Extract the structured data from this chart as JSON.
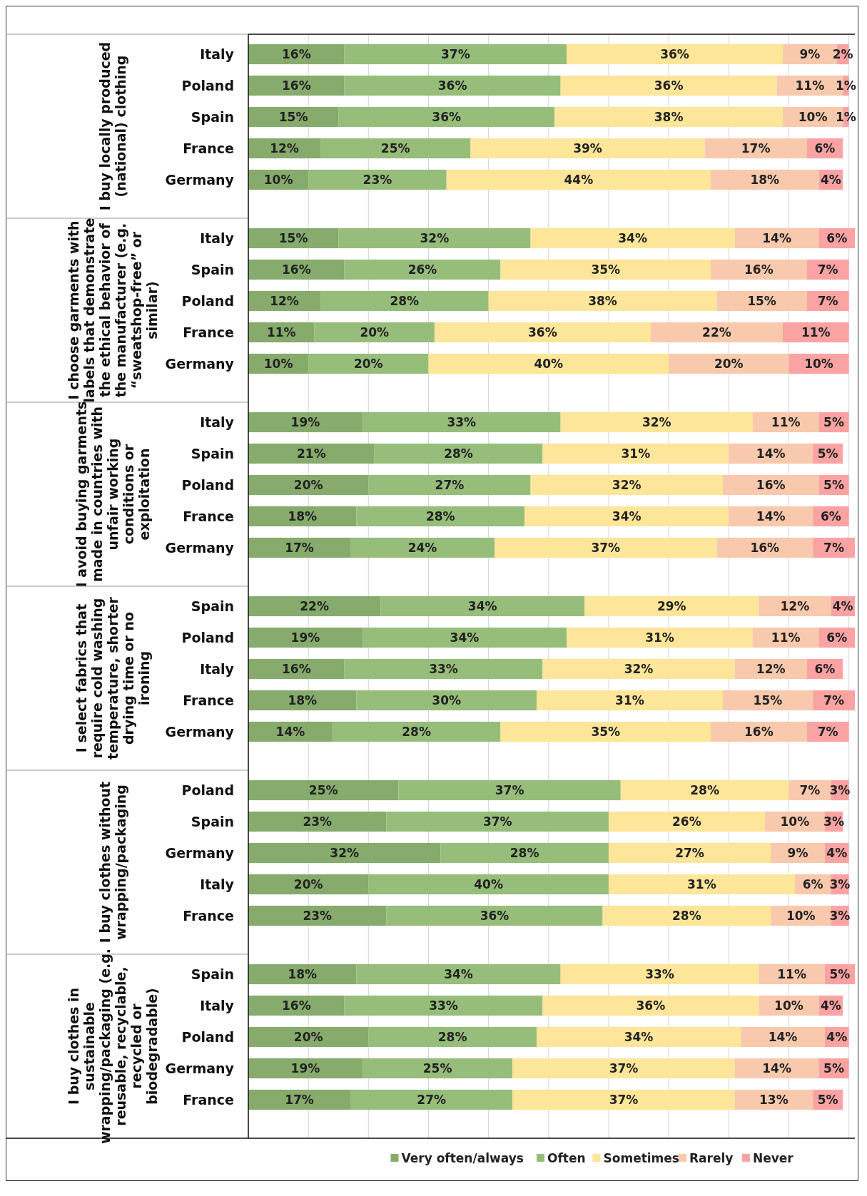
{
  "chart_data": [
    {
      "type": "bar",
      "orientation": "horizontal",
      "stacked": true,
      "title": "I buy locally produced (national) clothing",
      "categories": [
        "Italy",
        "Poland",
        "Spain",
        "France",
        "Germany"
      ],
      "xlim": [
        0,
        101
      ],
      "xticks": [
        {
          "value": 0,
          "label": null
        },
        {
          "value": 10,
          "label": null
        },
        {
          "value": 20,
          "label": null
        },
        {
          "value": 30,
          "label": null
        },
        {
          "value": 40,
          "label": null
        },
        {
          "value": 50,
          "label": null
        },
        {
          "value": 60,
          "label": null
        },
        {
          "value": 70,
          "label": null
        },
        {
          "value": 80,
          "label": null
        },
        {
          "value": 90,
          "label": null
        },
        {
          "value": 100,
          "label": null
        }
      ],
      "grid": "x",
      "series": [
        {
          "color": "#86ab6c",
          "values": [
            16,
            16,
            15,
            12,
            10
          ],
          "value_labels": [
            "16%",
            "16%",
            "15%",
            "12%",
            "10%"
          ]
        },
        {
          "color": "#97bd7b",
          "values": [
            37,
            36,
            36,
            25,
            23
          ],
          "value_labels": [
            "37%",
            "36%",
            "36%",
            "25%",
            "23%"
          ]
        },
        {
          "color": "#fde699",
          "values": [
            36,
            36,
            38,
            39,
            44
          ],
          "value_labels": [
            "36%",
            "36%",
            "38%",
            "39%",
            "44%"
          ]
        },
        {
          "color": "#f8c9ac",
          "values": [
            9,
            11,
            10,
            17,
            18
          ],
          "value_labels": [
            "9%",
            "11%",
            "10%",
            "17%",
            "18%"
          ]
        },
        {
          "color": "#fba3a3",
          "values": [
            2,
            1,
            1,
            6,
            4
          ],
          "value_labels": [
            "2%",
            "1%",
            "1%",
            "6%",
            "4%"
          ]
        }
      ]
    },
    {
      "type": "bar",
      "orientation": "horizontal",
      "stacked": true,
      "title": "I choose garments with labels that demonstrate the ethical behavior of the manufacturer (e.g. “sweatshop-free” or similar)",
      "categories": [
        "Italy",
        "Spain",
        "Poland",
        "France",
        "Germany"
      ],
      "xlim": [
        0,
        101
      ],
      "xticks": [
        {
          "value": 0,
          "label": null
        },
        {
          "value": 10,
          "label": null
        },
        {
          "value": 20,
          "label": null
        },
        {
          "value": 30,
          "label": null
        },
        {
          "value": 40,
          "label": null
        },
        {
          "value": 50,
          "label": null
        },
        {
          "value": 60,
          "label": null
        },
        {
          "value": 70,
          "label": null
        },
        {
          "value": 80,
          "label": null
        },
        {
          "value": 90,
          "label": null
        },
        {
          "value": 100,
          "label": null
        }
      ],
      "grid": "x",
      "series": [
        {
          "color": "#86ab6c",
          "values": [
            15,
            16,
            12,
            11,
            10
          ],
          "value_labels": [
            "15%",
            "16%",
            "12%",
            "11%",
            "10%"
          ]
        },
        {
          "color": "#97bd7b",
          "values": [
            32,
            26,
            28,
            20,
            20
          ],
          "value_labels": [
            "32%",
            "26%",
            "28%",
            "20%",
            "20%"
          ]
        },
        {
          "color": "#fde699",
          "values": [
            34,
            35,
            38,
            36,
            40
          ],
          "value_labels": [
            "34%",
            "35%",
            "38%",
            "36%",
            "40%"
          ]
        },
        {
          "color": "#f8c9ac",
          "values": [
            14,
            16,
            15,
            22,
            20
          ],
          "value_labels": [
            "14%",
            "16%",
            "15%",
            "22%",
            "20%"
          ]
        },
        {
          "color": "#fba3a3",
          "values": [
            6,
            7,
            7,
            11,
            10
          ],
          "value_labels": [
            "6%",
            "7%",
            "7%",
            "11%",
            "10%"
          ]
        }
      ]
    },
    {
      "type": "bar",
      "orientation": "horizontal",
      "stacked": true,
      "title": "I avoid buying garments made in countries with unfair working conditions or exploitation",
      "categories": [
        "Italy",
        "Spain",
        "Poland",
        "France",
        "Germany"
      ],
      "xlim": [
        0,
        101
      ],
      "xticks": [
        {
          "value": 0,
          "label": null
        },
        {
          "value": 10,
          "label": null
        },
        {
          "value": 20,
          "label": null
        },
        {
          "value": 30,
          "label": null
        },
        {
          "value": 40,
          "label": null
        },
        {
          "value": 50,
          "label": null
        },
        {
          "value": 60,
          "label": null
        },
        {
          "value": 70,
          "label": null
        },
        {
          "value": 80,
          "label": null
        },
        {
          "value": 90,
          "label": null
        },
        {
          "value": 100,
          "label": null
        }
      ],
      "grid": "x",
      "series": [
        {
          "color": "#86ab6c",
          "values": [
            19,
            21,
            20,
            18,
            17
          ],
          "value_labels": [
            "19%",
            "21%",
            "20%",
            "18%",
            "17%"
          ]
        },
        {
          "color": "#97bd7b",
          "values": [
            33,
            28,
            27,
            28,
            24
          ],
          "value_labels": [
            "33%",
            "28%",
            "27%",
            "28%",
            "24%"
          ]
        },
        {
          "color": "#fde699",
          "values": [
            32,
            31,
            32,
            34,
            37
          ],
          "value_labels": [
            "32%",
            "31%",
            "32%",
            "34%",
            "37%"
          ]
        },
        {
          "color": "#f8c9ac",
          "values": [
            11,
            14,
            16,
            14,
            16
          ],
          "value_labels": [
            "11%",
            "14%",
            "16%",
            "14%",
            "16%"
          ]
        },
        {
          "color": "#fba3a3",
          "values": [
            5,
            5,
            5,
            6,
            7
          ],
          "value_labels": [
            "5%",
            "5%",
            "5%",
            "6%",
            "7%"
          ]
        }
      ]
    },
    {
      "type": "bar",
      "orientation": "horizontal",
      "stacked": true,
      "title": "I select fabrics that require cold washing temperature, shorter drying time or no ironing",
      "categories": [
        "Spain",
        "Poland",
        "Italy",
        "France",
        "Germany"
      ],
      "xlim": [
        0,
        101
      ],
      "xticks": [
        {
          "value": 0,
          "label": null
        },
        {
          "value": 10,
          "label": null
        },
        {
          "value": 20,
          "label": null
        },
        {
          "value": 30,
          "label": null
        },
        {
          "value": 40,
          "label": null
        },
        {
          "value": 50,
          "label": null
        },
        {
          "value": 60,
          "label": null
        },
        {
          "value": 70,
          "label": null
        },
        {
          "value": 80,
          "label": null
        },
        {
          "value": 90,
          "label": null
        },
        {
          "value": 100,
          "label": null
        }
      ],
      "grid": "x",
      "series": [
        {
          "color": "#86ab6c",
          "values": [
            22,
            19,
            16,
            18,
            14
          ],
          "value_labels": [
            "22%",
            "19%",
            "16%",
            "18%",
            "14%"
          ]
        },
        {
          "color": "#97bd7b",
          "values": [
            34,
            34,
            33,
            30,
            28
          ],
          "value_labels": [
            "34%",
            "34%",
            "33%",
            "30%",
            "28%"
          ]
        },
        {
          "color": "#fde699",
          "values": [
            29,
            31,
            32,
            31,
            35
          ],
          "value_labels": [
            "29%",
            "31%",
            "32%",
            "31%",
            "35%"
          ]
        },
        {
          "color": "#f8c9ac",
          "values": [
            12,
            11,
            12,
            15,
            16
          ],
          "value_labels": [
            "12%",
            "11%",
            "12%",
            "15%",
            "16%"
          ]
        },
        {
          "color": "#fba3a3",
          "values": [
            4,
            6,
            6,
            7,
            7
          ],
          "value_labels": [
            "4%",
            "6%",
            "6%",
            "7%",
            "7%"
          ]
        }
      ]
    },
    {
      "type": "bar",
      "orientation": "horizontal",
      "stacked": true,
      "title": "I buy clothes without wrapping/packaging",
      "categories": [
        "Poland",
        "Spain",
        "Germany",
        "Italy",
        "France"
      ],
      "xlim": [
        0,
        101
      ],
      "xticks": [
        {
          "value": 0,
          "label": null
        },
        {
          "value": 10,
          "label": null
        },
        {
          "value": 20,
          "label": null
        },
        {
          "value": 30,
          "label": null
        },
        {
          "value": 40,
          "label": null
        },
        {
          "value": 50,
          "label": null
        },
        {
          "value": 60,
          "label": null
        },
        {
          "value": 70,
          "label": null
        },
        {
          "value": 80,
          "label": null
        },
        {
          "value": 90,
          "label": null
        },
        {
          "value": 100,
          "label": null
        }
      ],
      "grid": "x",
      "series": [
        {
          "color": "#86ab6c",
          "values": [
            25,
            23,
            32,
            20,
            23
          ],
          "value_labels": [
            "25%",
            "23%",
            "32%",
            "20%",
            "23%"
          ]
        },
        {
          "color": "#97bd7b",
          "values": [
            37,
            37,
            28,
            40,
            36
          ],
          "value_labels": [
            "37%",
            "37%",
            "28%",
            "40%",
            "36%"
          ]
        },
        {
          "color": "#fde699",
          "values": [
            28,
            26,
            27,
            31,
            28
          ],
          "value_labels": [
            "28%",
            "26%",
            "27%",
            "31%",
            "28%"
          ]
        },
        {
          "color": "#f8c9ac",
          "values": [
            7,
            10,
            9,
            6,
            10
          ],
          "value_labels": [
            "7%",
            "10%",
            "9%",
            "6%",
            "10%"
          ]
        },
        {
          "color": "#fba3a3",
          "values": [
            3,
            3,
            4,
            3,
            3
          ],
          "value_labels": [
            "3%",
            "3%",
            "4%",
            "3%",
            "3%"
          ]
        }
      ]
    },
    {
      "type": "bar",
      "orientation": "horizontal",
      "stacked": true,
      "title": "I buy clothes in sustainable wrapping/packaging (e.g. reusable, recyclable, recycled or biodegradable)",
      "categories": [
        "Spain",
        "Italy",
        "Poland",
        "Germany",
        "France"
      ],
      "xlim": [
        0,
        101
      ],
      "xticks": [
        {
          "value": 0,
          "label": null
        },
        {
          "value": 10,
          "label": null
        },
        {
          "value": 20,
          "label": null
        },
        {
          "value": 30,
          "label": null
        },
        {
          "value": 40,
          "label": null
        },
        {
          "value": 50,
          "label": null
        },
        {
          "value": 60,
          "label": null
        },
        {
          "value": 70,
          "label": null
        },
        {
          "value": 80,
          "label": null
        },
        {
          "value": 90,
          "label": null
        },
        {
          "value": 100,
          "label": null
        }
      ],
      "grid": "x",
      "legend": "bottom",
      "series": [
        {
          "name": "Very often/always",
          "color": "#86ab6c",
          "values": [
            18,
            16,
            20,
            19,
            17
          ],
          "value_labels": [
            "18%",
            "16%",
            "20%",
            "19%",
            "17%"
          ]
        },
        {
          "name": "Often",
          "color": "#97bd7b",
          "values": [
            34,
            33,
            28,
            25,
            27
          ],
          "value_labels": [
            "34%",
            "33%",
            "28%",
            "25%",
            "27%"
          ]
        },
        {
          "name": "Sometimes",
          "color": "#fde699",
          "values": [
            33,
            36,
            34,
            37,
            37
          ],
          "value_labels": [
            "33%",
            "36%",
            "34%",
            "37%",
            "37%"
          ]
        },
        {
          "name": "Rarely",
          "color": "#f8c9ac",
          "values": [
            11,
            10,
            14,
            14,
            13
          ],
          "value_labels": [
            "11%",
            "10%",
            "14%",
            "14%",
            "13%"
          ]
        },
        {
          "name": "Never",
          "color": "#fba3a3",
          "values": [
            5,
            4,
            4,
            5,
            5
          ],
          "value_labels": [
            "5%",
            "4%",
            "4%",
            "5%",
            "5%"
          ]
        }
      ]
    }
  ]
}
